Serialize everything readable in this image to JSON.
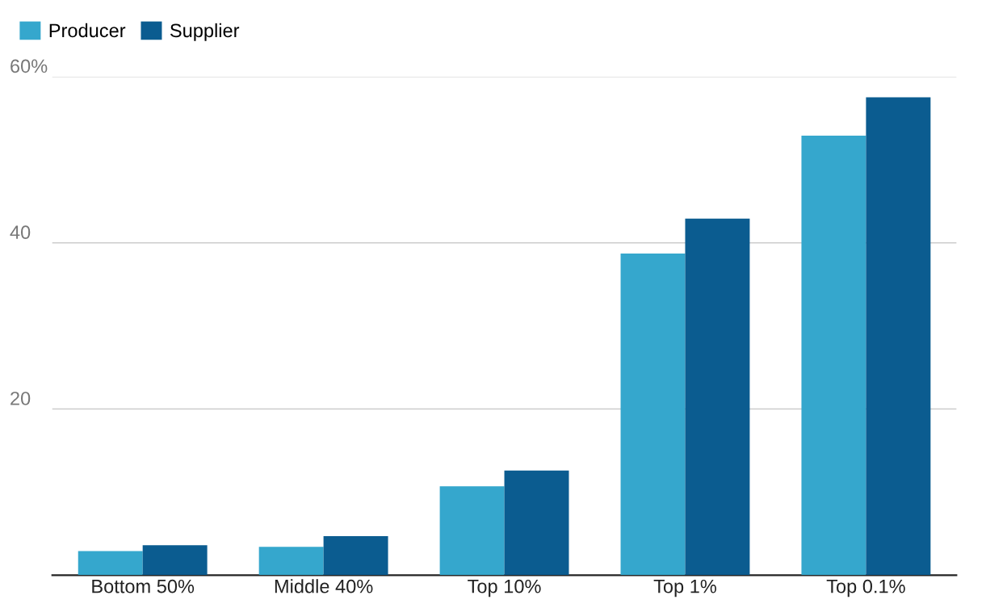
{
  "chart_data": {
    "type": "bar",
    "categories": [
      "Bottom 50%",
      "Middle 40%",
      "Top 10%",
      "Top 1%",
      "Top 0.1%"
    ],
    "series": [
      {
        "name": "Producer",
        "color": "#35a7cd",
        "values": [
          2.9,
          3.4,
          10.7,
          38.7,
          52.9
        ]
      },
      {
        "name": "Supplier",
        "color": "#0b5c90",
        "values": [
          3.6,
          4.7,
          12.6,
          42.9,
          57.5
        ]
      }
    ],
    "ylim": [
      0,
      60
    ],
    "yticks": [
      20,
      40,
      {
        "value": 60,
        "label": "60%"
      }
    ],
    "grid": "y",
    "legend": "top left"
  }
}
